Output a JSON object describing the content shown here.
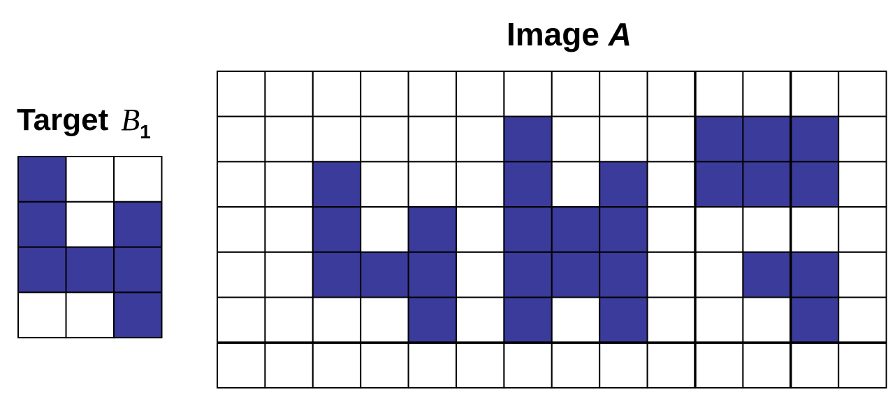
{
  "target": {
    "title_text": "Target",
    "symbol": "B",
    "subscript": "1",
    "rows": 4,
    "cols": 3,
    "filled": [
      [
        1,
        0,
        0
      ],
      [
        1,
        0,
        1
      ],
      [
        1,
        1,
        1
      ],
      [
        0,
        0,
        1
      ]
    ]
  },
  "image": {
    "title_text": "Image",
    "symbol": "A",
    "rows": 7,
    "cols": 14,
    "filled": [
      [
        0,
        0,
        0,
        0,
        0,
        0,
        0,
        0,
        0,
        0,
        0,
        0,
        0,
        0
      ],
      [
        0,
        0,
        0,
        0,
        0,
        0,
        1,
        0,
        0,
        0,
        1,
        1,
        1,
        0
      ],
      [
        0,
        0,
        1,
        0,
        0,
        0,
        1,
        0,
        1,
        0,
        1,
        1,
        1,
        0
      ],
      [
        0,
        0,
        1,
        0,
        1,
        0,
        1,
        1,
        1,
        0,
        0,
        0,
        0,
        0
      ],
      [
        0,
        0,
        1,
        1,
        1,
        0,
        1,
        1,
        1,
        0,
        0,
        1,
        1,
        0
      ],
      [
        0,
        0,
        0,
        0,
        1,
        0,
        1,
        0,
        1,
        0,
        0,
        0,
        1,
        0
      ],
      [
        0,
        0,
        0,
        0,
        0,
        0,
        0,
        0,
        0,
        0,
        0,
        0,
        0,
        0
      ]
    ]
  },
  "colors": {
    "filled": "#3b3b9c",
    "empty": "#ffffff",
    "line": "#000000"
  }
}
